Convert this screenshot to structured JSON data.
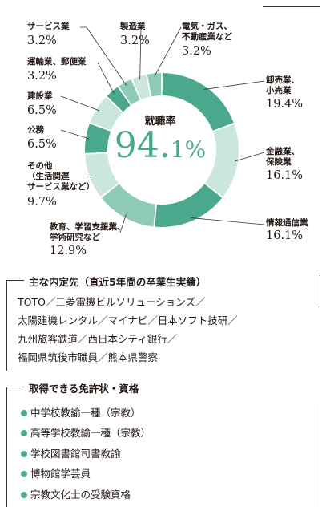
{
  "colors": {
    "dark": "#4aa98d",
    "mid": "#8fcab7",
    "light": "#cbe6dd"
  },
  "chart_data": {
    "type": "pie",
    "variant": "donut",
    "center_label": "就職率",
    "center_value_main": "94.",
    "center_value_sub": "1%",
    "slices": [
      {
        "label_lines": [
          "卸売業、",
          "小売業"
        ],
        "value_text": "19.4%",
        "value": 19.4,
        "shade": "dark"
      },
      {
        "label_lines": [
          "金融業、",
          "保険業"
        ],
        "value_text": "16.1%",
        "value": 16.1,
        "shade": "light"
      },
      {
        "label_lines": [
          "情報通信業"
        ],
        "value_text": "16.1%",
        "value": 16.1,
        "shade": "dark"
      },
      {
        "label_lines": [
          "教育、学習支援業、",
          "学術研究など"
        ],
        "value_text": "12.9%",
        "value": 12.9,
        "shade": "mid"
      },
      {
        "label_lines": [
          "その他",
          "（生活関連",
          "サービス業など）"
        ],
        "value_text": "9.7%",
        "value": 9.7,
        "shade": "light"
      },
      {
        "label_lines": [
          "公務"
        ],
        "value_text": "6.5%",
        "value": 6.5,
        "shade": "dark"
      },
      {
        "label_lines": [
          "建設業"
        ],
        "value_text": "6.5%",
        "value": 6.5,
        "shade": "light"
      },
      {
        "label_lines": [
          "運輸業、郵便業"
        ],
        "value_text": "3.2%",
        "value": 3.2,
        "shade": "dark"
      },
      {
        "label_lines": [
          "サービス業"
        ],
        "value_text": "3.2%",
        "value": 3.2,
        "shade": "mid"
      },
      {
        "label_lines": [
          "製造業"
        ],
        "value_text": "3.2%",
        "value": 3.2,
        "shade": "light"
      },
      {
        "label_lines": [
          "電気・ガス、",
          "不動産業など"
        ],
        "value_text": "3.2%",
        "value": 3.2,
        "shade": "mid"
      }
    ]
  },
  "employers": {
    "title": "主な内定先（直近5年間の卒業生実績）",
    "lines": [
      "TOTO／三菱電機ビルソリューションズ／",
      "太陽建機レンタル／マイナビ／日本ソフト技研／",
      "九州旅客鉄道／西日本シティ銀行／",
      "福岡県筑後市職員／熊本県警察"
    ]
  },
  "licenses": {
    "title": "取得できる免許状・資格",
    "items": [
      "中学校教諭一種（宗教）",
      "高等学校教諭一種（宗教）",
      "学校図書館司書教諭",
      "博物館学芸員",
      "宗教文化士の受験資格"
    ]
  }
}
